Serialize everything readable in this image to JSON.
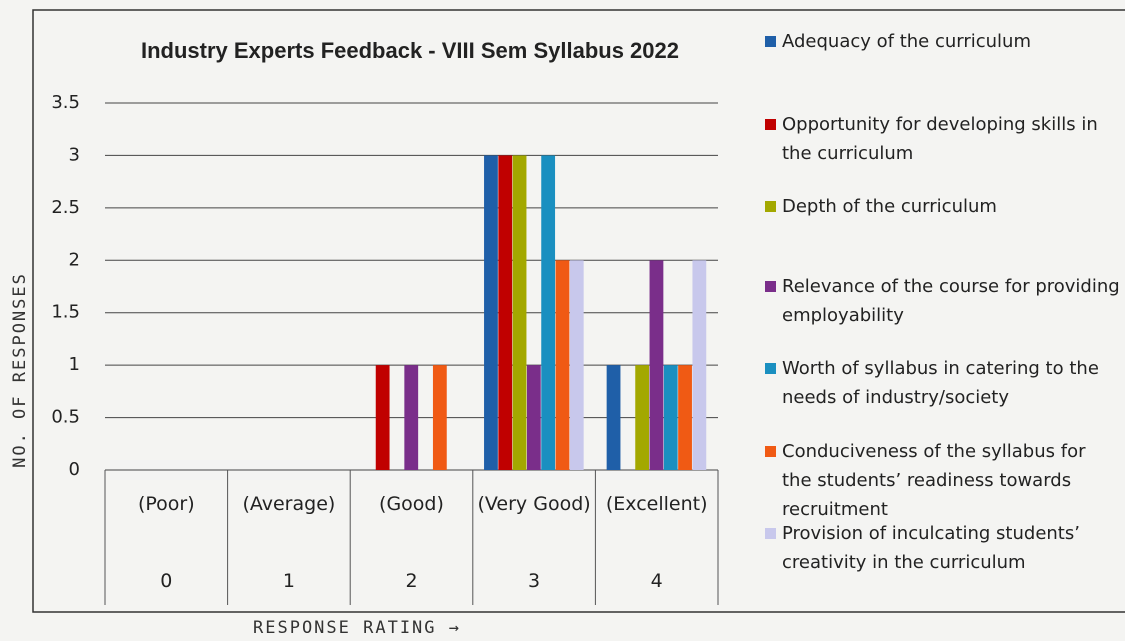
{
  "chart_data": {
    "type": "bar",
    "title": "Industry Experts Feedback - VIII Sem Syllabus 2022",
    "y_label": "NO. OF RESPONSES",
    "x_label": "RESPONSE RATING →",
    "categories": [
      "(Poor)",
      "(Average)",
      "(Good)",
      "(Very Good)",
      "(Excellent)"
    ],
    "category_codes": [
      0,
      1,
      2,
      3,
      4
    ],
    "series": [
      {
        "name": "Adequacy of the curriculum",
        "color": "#1f5fa8",
        "values": [
          0,
          0,
          0,
          3,
          1
        ]
      },
      {
        "name": "Opportunity for developing skills in the curriculum",
        "color": "#c00000",
        "values": [
          0,
          0,
          1,
          3,
          0
        ]
      },
      {
        "name": "Depth of the curriculum",
        "color": "#a3a800",
        "values": [
          0,
          0,
          0,
          3,
          1
        ]
      },
      {
        "name": "Relevance of the course for providing employability",
        "color": "#7a2e8a",
        "values": [
          0,
          0,
          1,
          1,
          2
        ]
      },
      {
        "name": "Worth of syllabus in catering to the needs of industry/society",
        "color": "#1a8fc0",
        "values": [
          0,
          0,
          0,
          3,
          1
        ]
      },
      {
        "name": "Conduciveness of the syllabus for the students’ readiness towards recruitment",
        "color": "#f05a14",
        "values": [
          0,
          0,
          1,
          2,
          1
        ]
      },
      {
        "name": "Provision of inculcating students’ creativity in the curriculum",
        "color": "#c8c8ec",
        "values": [
          0,
          0,
          0,
          2,
          2
        ]
      }
    ],
    "ylim": [
      0,
      3.5
    ],
    "yticks": [
      0,
      0.5,
      1,
      1.5,
      2,
      2.5,
      3,
      3.5
    ],
    "grid": true
  }
}
